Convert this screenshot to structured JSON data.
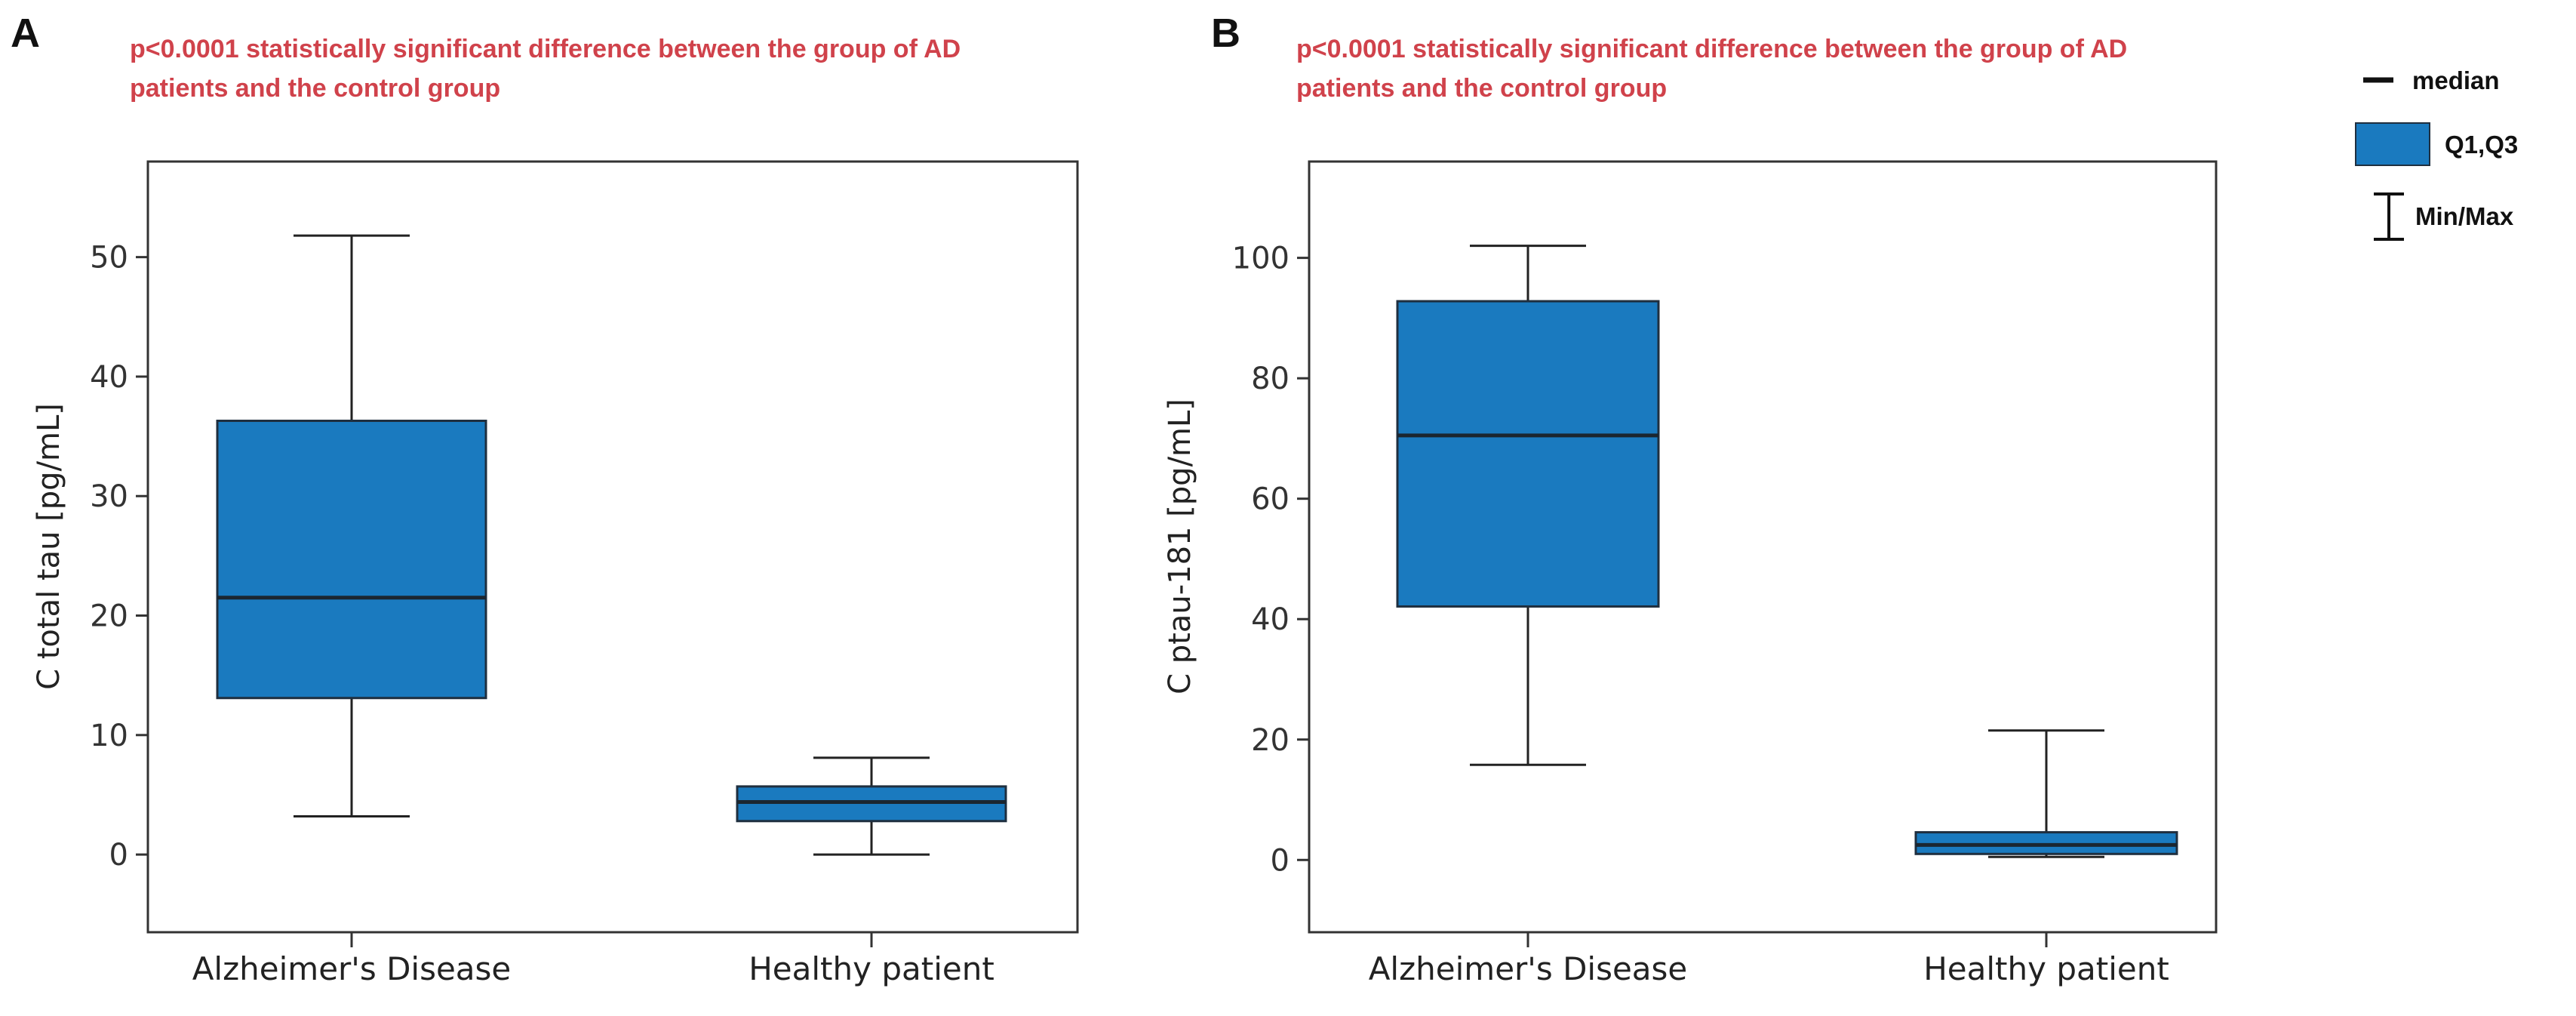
{
  "legend": {
    "median_label": "median",
    "quartile_label": "Q1,Q3",
    "range_label": "Min/Max"
  },
  "colors": {
    "box_fill": "#1a7abf",
    "box_stroke": "#1f2f3f",
    "annotation": "#d0424b",
    "axis": "#333333"
  },
  "chart_data": [
    {
      "type": "box",
      "panel": "A",
      "annotation_lines": [
        "p<0.0001 statistically significant difference between the group of AD",
        "patients and the control group"
      ],
      "ylabel": "C total tau [pg/mL]",
      "ylim": [
        -6.5,
        58
      ],
      "yticks": [
        0,
        10,
        20,
        30,
        40,
        50
      ],
      "categories": [
        "Alzheimer's Disease",
        "Healthy patient"
      ],
      "boxes": [
        {
          "min": 3.2,
          "q1": 13.1,
          "median": 21.5,
          "q3": 36.3,
          "max": 51.8
        },
        {
          "min": 0.0,
          "q1": 2.8,
          "median": 4.4,
          "q3": 5.7,
          "max": 8.1
        }
      ]
    },
    {
      "type": "box",
      "panel": "B",
      "annotation_lines": [
        "p<0.0001 statistically significant difference between the group of AD",
        "patients and the control group"
      ],
      "ylabel": "C ptau-181 [pg/mL]",
      "ylim": [
        -12,
        116
      ],
      "yticks": [
        0,
        20,
        40,
        60,
        80,
        100
      ],
      "categories": [
        "Alzheimer's Disease",
        "Healthy patient"
      ],
      "boxes": [
        {
          "min": 15.8,
          "q1": 42.1,
          "median": 70.5,
          "q3": 92.8,
          "max": 102.0
        },
        {
          "min": 0.5,
          "q1": 1.0,
          "median": 2.5,
          "q3": 4.6,
          "max": 21.5
        }
      ]
    }
  ]
}
